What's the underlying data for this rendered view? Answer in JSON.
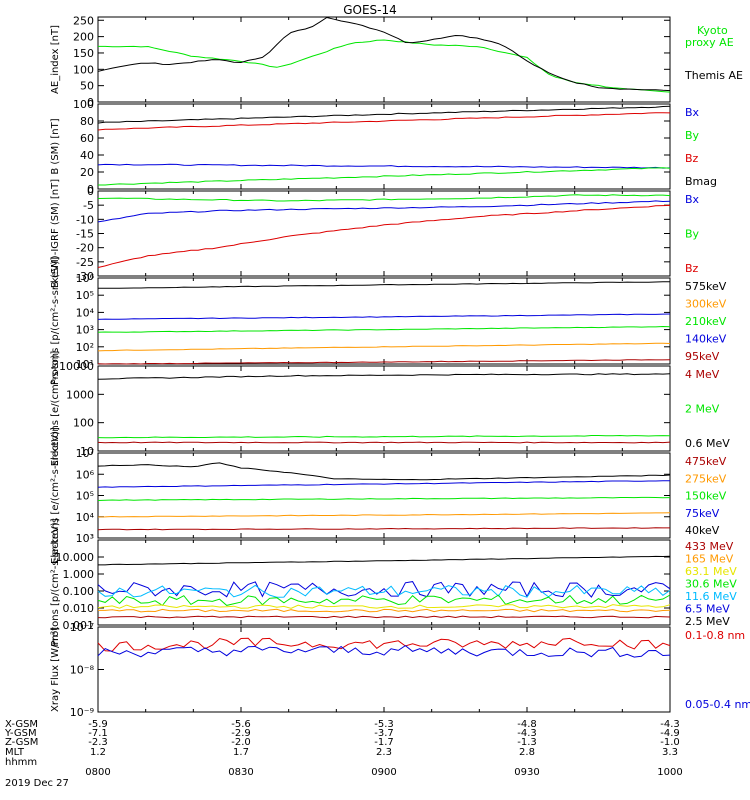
{
  "title": "GOES-14",
  "colors": {
    "black": "#000000",
    "green": "#00e600",
    "red": "#dd0000",
    "blue": "#0000dd",
    "orange": "#ff9900",
    "yellow": "#e6e600",
    "cyan": "#00bbff",
    "purple": "#aa00aa",
    "darkred": "#aa0000"
  },
  "time_axis": {
    "tick_labels": [
      "0800",
      "0830",
      "0900",
      "0930",
      "1000"
    ],
    "start_minutes": 480,
    "end_minutes": 600
  },
  "footer": {
    "row_labels": [
      "X-GSM",
      "Y-GSM",
      "Z-GSM",
      "MLT",
      "hhmm"
    ],
    "rows": [
      [
        "-5.9",
        "-5.6",
        "-5.3",
        "-4.8",
        "-4.3"
      ],
      [
        "-7.1",
        "-2.9",
        "-3.7",
        "-4.3",
        "-4.9"
      ],
      [
        "-2.3",
        "-2.0",
        "-1.7",
        "-1.3",
        "-1.0"
      ],
      [
        "1.2",
        "1.7",
        "2.3",
        "2.8",
        "3.3"
      ]
    ],
    "date": "2019 Dec 27"
  },
  "chart_data": [
    {
      "type": "line",
      "ylabel": "AE_index [nT]",
      "ylim": [
        0,
        260
      ],
      "ytick_labels": [
        "0",
        "50",
        "100",
        "150",
        "200",
        "250"
      ],
      "ytick_values": [
        0,
        50,
        100,
        150,
        200,
        250
      ],
      "legend": [
        "Kyoto proxy AE",
        "Themis AE"
      ],
      "series": [
        {
          "name": "Kyoto proxy AE",
          "color": "#00e600",
          "x": [
            480,
            490,
            500,
            510,
            518,
            525,
            533,
            540,
            550,
            560,
            570,
            575,
            580,
            590,
            600
          ],
          "y": [
            170,
            170,
            140,
            125,
            105,
            140,
            180,
            190,
            175,
            170,
            135,
            80,
            60,
            40,
            30
          ]
        },
        {
          "name": "Themis AE",
          "color": "#000000",
          "x": [
            480,
            485,
            490,
            495,
            505,
            510,
            515,
            520,
            525,
            528,
            535,
            540,
            545,
            550,
            555,
            560,
            565,
            570,
            575,
            580,
            585,
            590,
            600
          ],
          "y": [
            95,
            110,
            120,
            115,
            130,
            120,
            140,
            210,
            230,
            260,
            235,
            215,
            180,
            190,
            205,
            195,
            175,
            125,
            85,
            60,
            45,
            40,
            35
          ]
        }
      ]
    },
    {
      "type": "line",
      "ylabel": "B (SM) [nT]",
      "ylim": [
        0,
        100
      ],
      "ytick_labels": [
        "0",
        "20",
        "40",
        "60",
        "80",
        "100"
      ],
      "ytick_values": [
        0,
        20,
        40,
        60,
        80,
        100
      ],
      "legend": [
        "Bx",
        "By",
        "Bz",
        "Bmag"
      ],
      "series": [
        {
          "name": "Bmag",
          "color": "#000000",
          "x": [
            480,
            540,
            600
          ],
          "y": [
            78,
            88,
            97
          ]
        },
        {
          "name": "Bz",
          "color": "#dd0000",
          "x": [
            480,
            540,
            600
          ],
          "y": [
            70,
            80,
            90
          ]
        },
        {
          "name": "Bx",
          "color": "#0000dd",
          "x": [
            480,
            540,
            600
          ],
          "y": [
            29,
            27,
            25
          ]
        },
        {
          "name": "By",
          "color": "#00e600",
          "x": [
            480,
            540,
            600
          ],
          "y": [
            5,
            15,
            25
          ]
        }
      ]
    },
    {
      "type": "line",
      "ylabel": "B (SM)-IGRF (SM) [nT]",
      "ylim": [
        -30,
        0
      ],
      "ytick_labels": [
        "-30",
        "-25",
        "-20",
        "-15",
        "-10",
        "-5",
        "0"
      ],
      "ytick_values": [
        -30,
        -25,
        -20,
        -15,
        -10,
        -5,
        0
      ],
      "legend": [
        "Bx",
        "By",
        "Bz"
      ],
      "series": [
        {
          "name": "By",
          "color": "#00e600",
          "x": [
            480,
            500,
            520,
            540,
            560,
            580,
            600
          ],
          "y": [
            -2.5,
            -3,
            -3.5,
            -3,
            -2.5,
            -1.5,
            -1.5
          ]
        },
        {
          "name": "Bx",
          "color": "#0000dd",
          "x": [
            480,
            490,
            505,
            520,
            540,
            560,
            580,
            600
          ],
          "y": [
            -11,
            -8,
            -7,
            -6.5,
            -6,
            -5.5,
            -4.5,
            -3.5
          ]
        },
        {
          "name": "Bz",
          "color": "#dd0000",
          "x": [
            480,
            490,
            505,
            520,
            540,
            560,
            580,
            600
          ],
          "y": [
            -27,
            -23,
            -20,
            -16,
            -12,
            -9,
            -7,
            -5
          ]
        }
      ]
    },
    {
      "type": "line",
      "ylabel": "Protons [p/(cm²-s-sr-keV)]",
      "ylog": true,
      "ylim": [
        10,
        1000000
      ],
      "ytick_labels": [
        "10¹",
        "10²",
        "10³",
        "10⁴",
        "10⁵",
        "10⁶"
      ],
      "ytick_values": [
        10,
        100,
        1000,
        10000,
        100000,
        1000000
      ],
      "legend": [
        "575keV",
        "300keV",
        "210keV",
        "140keV",
        "95keV"
      ],
      "series": [
        {
          "name": "575keV",
          "color": "#000000",
          "x": [
            480,
            540,
            600
          ],
          "y": [
            250000,
            400000,
            600000
          ]
        },
        {
          "name": "140keV",
          "color": "#0000dd",
          "x": [
            480,
            540,
            600
          ],
          "y": [
            4000,
            5500,
            8000
          ]
        },
        {
          "name": "210keV",
          "color": "#00e600",
          "x": [
            480,
            540,
            600
          ],
          "y": [
            700,
            1000,
            1500
          ]
        },
        {
          "name": "300keV",
          "color": "#ff9900",
          "x": [
            480,
            540,
            600
          ],
          "y": [
            60,
            100,
            160
          ]
        },
        {
          "name": "95keV",
          "color": "#aa0000",
          "x": [
            480,
            540,
            600
          ],
          "y": [
            10,
            13,
            18
          ]
        }
      ]
    },
    {
      "type": "line",
      "ylabel": "Electrons [e/(cm²-s-sr)]",
      "ylog": true,
      "ylim": [
        10,
        10000
      ],
      "ytick_labels": [
        "10",
        "100",
        "1000",
        "10000"
      ],
      "ytick_values": [
        10,
        100,
        1000,
        10000
      ],
      "legend": [
        "4 MeV",
        "2 MeV",
        "0.6 MeV"
      ],
      "series": [
        {
          "name": "0.6 MeV",
          "color": "#000000",
          "x": [
            480,
            520,
            560,
            600
          ],
          "y": [
            3500,
            4500,
            5000,
            5200
          ]
        },
        {
          "name": "2 MeV",
          "color": "#00e600",
          "x": [
            480,
            540,
            600
          ],
          "y": [
            30,
            32,
            35
          ]
        },
        {
          "name": "4 MeV",
          "color": "#aa0000",
          "x": [
            480,
            540,
            600
          ],
          "y": [
            20,
            20,
            20
          ]
        }
      ]
    },
    {
      "type": "line",
      "ylabel": "Electrons [e/(cm²-s-sr-keV)]",
      "ylog": true,
      "ylim": [
        1000,
        10000000
      ],
      "ytick_labels": [
        "10³",
        "10⁴",
        "10⁵",
        "10⁶",
        "10⁷"
      ],
      "ytick_values": [
        1000,
        10000,
        100000,
        1000000,
        10000000
      ],
      "legend": [
        "475keV",
        "275keV",
        "150keV",
        "75keV",
        "40keV"
      ],
      "series": [
        {
          "name": "40keV",
          "color": "#000000",
          "x": [
            480,
            490,
            500,
            505,
            510,
            520,
            530,
            545,
            600
          ],
          "y": [
            2500000,
            2800000,
            2200000,
            3500000,
            2000000,
            1200000,
            600000,
            550000,
            900000
          ]
        },
        {
          "name": "75keV",
          "color": "#0000dd",
          "x": [
            480,
            540,
            600
          ],
          "y": [
            250000,
            350000,
            500000
          ]
        },
        {
          "name": "150keV",
          "color": "#00e600",
          "x": [
            480,
            540,
            600
          ],
          "y": [
            60000,
            70000,
            80000
          ]
        },
        {
          "name": "275keV",
          "color": "#ff9900",
          "x": [
            480,
            540,
            600
          ],
          "y": [
            10000,
            12000,
            15000
          ]
        },
        {
          "name": "475keV",
          "color": "#aa0000",
          "x": [
            480,
            540,
            600
          ],
          "y": [
            2500,
            2700,
            3000
          ]
        }
      ]
    },
    {
      "type": "line",
      "ylabel": "Protons [p/(cm²-s-sr-keV)]",
      "ylog": true,
      "ylim": [
        0.001,
        100
      ],
      "ytick_labels": [
        "0.001",
        "0.010",
        "0.100",
        "1.000",
        "10.000"
      ],
      "ytick_values": [
        0.001,
        0.01,
        0.1,
        1,
        10
      ],
      "legend": [
        "433 MeV",
        "165 MeV",
        "63.1 MeV",
        "30.6 MeV",
        "11.6 MeV",
        "6.5 MeV",
        "2.5 MeV"
      ],
      "series": [
        {
          "name": "2.5 MeV",
          "color": "#000000",
          "x": [
            480,
            540,
            600
          ],
          "y": [
            3.5,
            6,
            11
          ]
        },
        {
          "name": "6.5 MeV",
          "color": "#0000dd",
          "noise": 0.45,
          "x": [
            480,
            540,
            600
          ],
          "y": [
            0.12,
            0.13,
            0.12
          ]
        },
        {
          "name": "11.6 MeV",
          "color": "#00bbff",
          "noise": 0.35,
          "x": [
            480,
            540,
            600
          ],
          "y": [
            0.09,
            0.1,
            0.09
          ]
        },
        {
          "name": "30.6 MeV",
          "color": "#00e600",
          "noise": 0.3,
          "x": [
            480,
            540,
            600
          ],
          "y": [
            0.025,
            0.03,
            0.03
          ]
        },
        {
          "name": "63.1 MeV",
          "color": "#e6e600",
          "noise": 0.1,
          "x": [
            480,
            540,
            600
          ],
          "y": [
            0.012,
            0.012,
            0.013
          ]
        },
        {
          "name": "165 MeV",
          "color": "#ff9900",
          "noise": 0.08,
          "x": [
            480,
            540,
            600
          ],
          "y": [
            0.007,
            0.007,
            0.007
          ]
        },
        {
          "name": "433 MeV",
          "color": "#aa0000",
          "noise": 0.05,
          "x": [
            480,
            540,
            600
          ],
          "y": [
            0.003,
            0.003,
            0.003
          ]
        }
      ]
    },
    {
      "type": "line",
      "ylabel": "Xray Flux [W/m²]",
      "ylog": true,
      "ylim": [
        1e-09,
        1e-07
      ],
      "ytick_labels": [
        "10⁻⁹",
        "10⁻⁸",
        "10⁻⁷"
      ],
      "ytick_values": [
        1e-09,
        1e-08,
        1e-07
      ],
      "legend": [
        "0.1-0.8 nm",
        "0.05-0.4 nm"
      ],
      "series": [
        {
          "name": "0.1-0.8 nm",
          "color": "#dd0000",
          "noise": 0.12,
          "x": [
            480,
            510,
            540,
            570,
            580,
            600
          ],
          "y": [
            3.5e-08,
            4.2e-08,
            4e-08,
            4e-08,
            5e-08,
            3.5e-08
          ]
        },
        {
          "name": "0.05-0.4 nm",
          "color": "#0000dd",
          "noise": 0.12,
          "x": [
            480,
            510,
            540,
            570,
            600
          ],
          "y": [
            2.5e-08,
            2.8e-08,
            2.8e-08,
            2.6e-08,
            2.5e-08
          ]
        }
      ]
    }
  ]
}
